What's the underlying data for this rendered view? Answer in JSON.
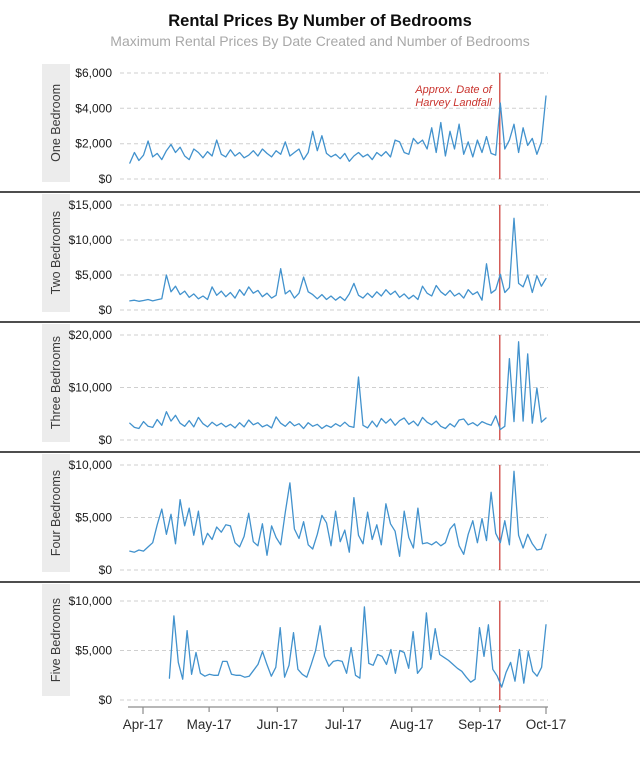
{
  "colors": {
    "line": "#4292cd",
    "event": "#c9342e",
    "grid": "#cfcfcf",
    "axis": "#8c8c8c",
    "x_label": "#2b2b2b",
    "y_label": "#1a1a1a",
    "separator": "#4d4d4d",
    "facet_bg": "#ececec",
    "subtitle": "#a8a8a8"
  },
  "chart_data": {
    "type": "line",
    "title": "Rental Prices By Number of Bedrooms",
    "subtitle": "Maximum Rental Prices By Date Created and Number of Bedrooms",
    "x": {
      "tick_labels": [
        "Apr-17",
        "May-17",
        "Jun-17",
        "Jul-17",
        "Aug-17",
        "Sep-17",
        "Oct-17"
      ],
      "tick_days": [
        0,
        30,
        61,
        91,
        122,
        153,
        183
      ],
      "domain": [
        -6,
        183
      ]
    },
    "event_line": {
      "day": 162,
      "label_line1": "Approx. Date of",
      "label_line2": "Harvey Landfall"
    },
    "panels": [
      {
        "facet": "One Bedroom",
        "ylim": [
          0,
          6000
        ],
        "yticks": [
          0,
          2000,
          4000,
          6000
        ],
        "ytick_labels": [
          "$0",
          "$2,000",
          "$4,000",
          "$6,000"
        ],
        "x_start": -6,
        "values": [
          900,
          1500,
          1050,
          1350,
          2150,
          1250,
          1450,
          1100,
          1600,
          1950,
          1500,
          1800,
          1300,
          1100,
          1700,
          1500,
          1200,
          1550,
          1300,
          2200,
          1400,
          1250,
          1650,
          1300,
          1500,
          1200,
          1350,
          1600,
          1300,
          1700,
          1450,
          1250,
          1600,
          1400,
          2100,
          1300,
          1500,
          1700,
          1100,
          1500,
          2700,
          1600,
          2450,
          1450,
          1250,
          1400,
          1150,
          1450,
          1000,
          1300,
          1500,
          1250,
          1400,
          1100,
          1500,
          1300,
          1550,
          1250,
          2200,
          2100,
          1500,
          1400,
          2300,
          2000,
          2200,
          1700,
          2900,
          1500,
          3200,
          1300,
          2700,
          1700,
          3100,
          1400,
          2100,
          1250,
          2200,
          1500,
          2400,
          1450,
          1350,
          4300,
          1700,
          2200,
          3100,
          1500,
          2900,
          1900,
          2300,
          1400,
          2100,
          4700
        ]
      },
      {
        "facet": "Two Bedrooms",
        "ylim": [
          0,
          15000
        ],
        "yticks": [
          0,
          5000,
          10000,
          15000
        ],
        "ytick_labels": [
          "$0",
          "$5,000",
          "$10,000",
          "$15,000"
        ],
        "x_start": -6,
        "values": [
          1300,
          1400,
          1250,
          1350,
          1500,
          1300,
          1450,
          1600,
          5000,
          2600,
          3400,
          2200,
          2700,
          1800,
          2300,
          1600,
          2000,
          1500,
          3300,
          2100,
          2700,
          1900,
          2500,
          1700,
          2900,
          2100,
          3300,
          2400,
          2800,
          1900,
          2400,
          1700,
          2100,
          5900,
          2300,
          2800,
          1700,
          2400,
          4700,
          2600,
          2200,
          1600,
          2200,
          1500,
          2000,
          1400,
          1900,
          1350,
          2300,
          3800,
          2100,
          1700,
          2400,
          1800,
          2600,
          2000,
          2900,
          2200,
          2700,
          1800,
          2300,
          1600,
          2100,
          1500,
          3400,
          2400,
          2000,
          3500,
          2600,
          2100,
          2800,
          2000,
          2400,
          1700,
          2900,
          2200,
          2600,
          1400,
          6600,
          2400,
          2900,
          5100,
          2500,
          3200,
          13100,
          3800,
          3300,
          5000,
          2500,
          4900,
          3400,
          4500
        ]
      },
      {
        "facet": "Three Bedrooms",
        "ylim": [
          0,
          20000
        ],
        "yticks": [
          0,
          10000,
          20000
        ],
        "ytick_labels": [
          "$0",
          "$10,000",
          "$20,000"
        ],
        "x_start": -6,
        "values": [
          3200,
          2400,
          2200,
          3500,
          2600,
          2400,
          3900,
          2800,
          5400,
          3600,
          4700,
          3200,
          2600,
          3700,
          2500,
          4300,
          3100,
          2500,
          3400,
          2700,
          3200,
          2500,
          3000,
          2300,
          3300,
          2500,
          3800,
          2900,
          3300,
          2500,
          2900,
          2300,
          4400,
          3200,
          2600,
          3500,
          2700,
          3100,
          2200,
          3300,
          2600,
          3000,
          2200,
          2800,
          2400,
          3100,
          2600,
          3400,
          2600,
          2400,
          12000,
          2800,
          2300,
          3600,
          2500,
          4100,
          3200,
          4000,
          2800,
          3700,
          4200,
          3000,
          3600,
          2700,
          4300,
          3400,
          2900,
          3600,
          2600,
          2200,
          3100,
          2500,
          3800,
          4000,
          2900,
          3300,
          2700,
          3500,
          3100,
          2800,
          4600,
          2000,
          2600,
          15500,
          3500,
          18700,
          3600,
          16400,
          3200,
          9900,
          3400,
          4200
        ]
      },
      {
        "facet": "Four Bedrooms",
        "ylim": [
          0,
          10000
        ],
        "yticks": [
          0,
          5000,
          10000
        ],
        "ytick_labels": [
          "$0",
          "$5,000",
          "$10,000"
        ],
        "x_start": -6,
        "values": [
          1800,
          1700,
          1900,
          1800,
          2200,
          2600,
          4300,
          5800,
          3400,
          5300,
          2500,
          6700,
          4200,
          5900,
          3300,
          5600,
          2400,
          3500,
          2900,
          4100,
          3600,
          4300,
          4200,
          2600,
          2200,
          3200,
          5400,
          2700,
          2300,
          4400,
          1400,
          4200,
          3100,
          2400,
          5500,
          8300,
          3900,
          3000,
          4600,
          2400,
          2000,
          3400,
          5200,
          4500,
          2300,
          5600,
          2700,
          3800,
          1700,
          6900,
          3300,
          2500,
          5500,
          2900,
          4300,
          2400,
          6300,
          4400,
          3700,
          1300,
          5600,
          3100,
          2100,
          5900,
          2500,
          2600,
          2400,
          2700,
          2300,
          2600,
          3900,
          4400,
          2300,
          1500,
          3400,
          4700,
          2600,
          4900,
          2800,
          7400,
          3500,
          2600,
          4700,
          2400,
          9400,
          3300,
          2100,
          3400,
          2500,
          1900,
          2000,
          3400
        ]
      },
      {
        "facet": "Five Bedrooms",
        "ylim": [
          0,
          10000
        ],
        "yticks": [
          0,
          5000,
          10000
        ],
        "ytick_labels": [
          "$0",
          "$5,000",
          "$10,000"
        ],
        "x_start": 12,
        "values": [
          2200,
          8500,
          3800,
          2100,
          7000,
          2600,
          4800,
          2700,
          2400,
          2600,
          2500,
          2500,
          3900,
          3900,
          2600,
          2500,
          2500,
          2300,
          2400,
          3000,
          3600,
          4900,
          3600,
          2400,
          3300,
          7300,
          2300,
          3500,
          6800,
          3100,
          2600,
          2300,
          3600,
          5000,
          7500,
          4400,
          3400,
          3900,
          4000,
          3900,
          2700,
          5300,
          2500,
          2200,
          9400,
          3700,
          3500,
          4600,
          4400,
          3600,
          5100,
          2700,
          5000,
          4800,
          3200,
          6900,
          2700,
          3300,
          8800,
          4100,
          7200,
          4600,
          4300,
          4000,
          3600,
          3200,
          2900,
          2300,
          1800,
          2100,
          7300,
          4400,
          7600,
          3100,
          2400,
          1300,
          2800,
          3800,
          1900,
          5100,
          1700,
          4900,
          2900,
          2400,
          3300,
          7600
        ]
      }
    ]
  }
}
